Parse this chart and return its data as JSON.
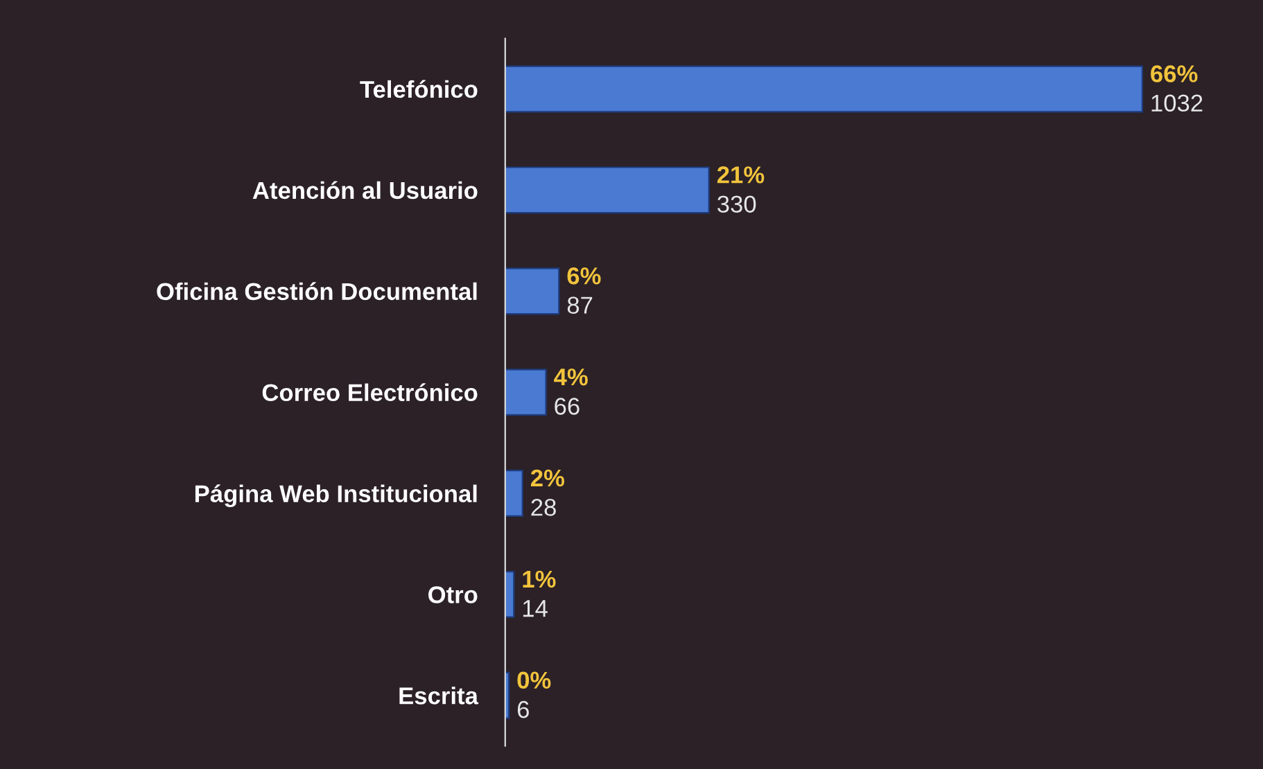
{
  "chart_data": {
    "type": "bar",
    "orientation": "horizontal",
    "categories": [
      "Telefónico",
      "Atención al Usuario",
      "Oficina Gestión Documental",
      "Correo Electrónico",
      "Página Web Institucional",
      "Otro",
      "Escrita"
    ],
    "values": [
      1032,
      330,
      87,
      66,
      28,
      14,
      6
    ],
    "value_labels": [
      "66%\n1032",
      "21%\n330",
      "6%\n87",
      "4%\n66",
      "2%\n28",
      "1%\n14",
      "0%\n6"
    ],
    "color": "#4a7ad2",
    "grid": false,
    "legend": false
  }
}
